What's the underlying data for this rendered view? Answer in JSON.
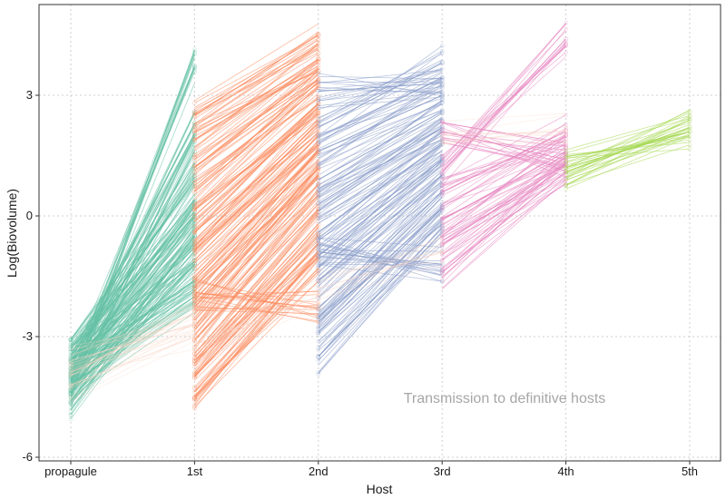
{
  "chart_data": {
    "type": "line",
    "xlabel": "Host",
    "ylabel": "Log(Biovolume)",
    "categories": [
      "propagule",
      "1st",
      "2nd",
      "3rd",
      "4th",
      "5th"
    ],
    "y_ticks": [
      -6,
      -3,
      0,
      3
    ],
    "ylim": [
      -6,
      4.9
    ],
    "grid": true,
    "annotation": "Transmission to definitive hosts",
    "colors": {
      "to_1st_host": "#66c2a5",
      "to_2nd_host": "#fc8d62",
      "to_3rd_host": "#8da0cb",
      "to_4th_host": "#e78ac3",
      "to_5th_host": "#a6d854",
      "definitive_transition": "#f9d3c4",
      "background": "#ffffff",
      "grid": "#cfcfcf"
    },
    "series": [
      {
        "color_key": "to_1st_host",
        "segments": [
          [
            [
              0,
              -4.1
            ],
            [
              1,
              3.7
            ]
          ],
          [
            [
              0,
              -3.8
            ],
            [
              1,
              2.3
            ]
          ],
          [
            [
              0,
              -4.3
            ],
            [
              1,
              1.6
            ]
          ],
          [
            [
              0,
              -3.5
            ],
            [
              1,
              0.9
            ]
          ],
          [
            [
              0,
              -3.9
            ],
            [
              1,
              0.4
            ]
          ],
          [
            [
              0,
              -4.0
            ],
            [
              1,
              -0.2
            ]
          ],
          [
            [
              0,
              -3.6
            ],
            [
              1,
              -0.8
            ]
          ],
          [
            [
              0,
              -4.4
            ],
            [
              1,
              -1.2
            ]
          ],
          [
            [
              0,
              -3.7
            ],
            [
              1,
              -1.6
            ]
          ],
          [
            [
              0,
              -4.2
            ],
            [
              1,
              -2.0
            ]
          ],
          [
            [
              0,
              -3.3
            ],
            [
              1,
              0.1
            ]
          ],
          [
            [
              0,
              -4.6
            ],
            [
              1,
              -0.5
            ]
          ]
        ]
      },
      {
        "color_key": "to_2nd_host",
        "segments": [
          [
            [
              1,
              2.5
            ],
            [
              2,
              4.5
            ]
          ],
          [
            [
              1,
              1.9
            ],
            [
              2,
              3.9
            ]
          ],
          [
            [
              1,
              1.2
            ],
            [
              2,
              3.6
            ]
          ],
          [
            [
              1,
              0.6
            ],
            [
              2,
              3.2
            ]
          ],
          [
            [
              1,
              0.0
            ],
            [
              2,
              2.8
            ]
          ],
          [
            [
              1,
              -0.6
            ],
            [
              2,
              2.4
            ]
          ],
          [
            [
              1,
              -1.1
            ],
            [
              2,
              2.0
            ]
          ],
          [
            [
              1,
              -1.6
            ],
            [
              2,
              1.6
            ]
          ],
          [
            [
              1,
              -2.1
            ],
            [
              2,
              1.2
            ]
          ],
          [
            [
              1,
              -2.6
            ],
            [
              2,
              0.8
            ]
          ],
          [
            [
              1,
              -3.1
            ],
            [
              2,
              0.3
            ]
          ],
          [
            [
              1,
              -3.6
            ],
            [
              2,
              -0.2
            ]
          ],
          [
            [
              1,
              -4.0
            ],
            [
              2,
              -0.7
            ]
          ],
          [
            [
              1,
              -4.5
            ],
            [
              2,
              -1.3
            ]
          ],
          [
            [
              1,
              -1.9
            ],
            [
              2,
              -2.3
            ]
          ]
        ]
      },
      {
        "color_key": "to_3rd_host",
        "segments": [
          [
            [
              2,
              3.1
            ],
            [
              3,
              3.3
            ]
          ],
          [
            [
              2,
              2.2
            ],
            [
              3,
              3.8
            ]
          ],
          [
            [
              2,
              1.6
            ],
            [
              3,
              3.0
            ]
          ],
          [
            [
              2,
              0.9
            ],
            [
              3,
              2.6
            ]
          ],
          [
            [
              2,
              0.3
            ],
            [
              3,
              2.2
            ]
          ],
          [
            [
              2,
              -0.4
            ],
            [
              3,
              1.8
            ]
          ],
          [
            [
              2,
              -1.0
            ],
            [
              3,
              1.4
            ]
          ],
          [
            [
              2,
              -1.6
            ],
            [
              3,
              1.0
            ]
          ],
          [
            [
              2,
              -2.3
            ],
            [
              3,
              0.6
            ]
          ],
          [
            [
              2,
              -2.9
            ],
            [
              3,
              0.2
            ]
          ],
          [
            [
              2,
              -3.5
            ],
            [
              3,
              -0.3
            ]
          ],
          [
            [
              2,
              -0.9
            ],
            [
              3,
              -1.2
            ]
          ]
        ]
      },
      {
        "color_key": "to_4th_host",
        "segments": [
          [
            [
              3,
              1.1
            ],
            [
              4,
              4.4
            ]
          ],
          [
            [
              3,
              2.1
            ],
            [
              4,
              1.4
            ]
          ],
          [
            [
              3,
              0.6
            ],
            [
              4,
              2.1
            ]
          ],
          [
            [
              3,
              -0.1
            ],
            [
              4,
              1.6
            ]
          ],
          [
            [
              3,
              -0.7
            ],
            [
              4,
              1.3
            ]
          ],
          [
            [
              3,
              -1.4
            ],
            [
              4,
              1.1
            ]
          ]
        ]
      },
      {
        "color_key": "to_5th_host",
        "segments": [
          [
            [
              4,
              1.1
            ],
            [
              5,
              2.2
            ]
          ],
          [
            [
              4,
              1.2
            ],
            [
              5,
              2.1
            ]
          ]
        ]
      },
      {
        "color_key": "definitive_transition",
        "segments": [
          [
            [
              0,
              -3.9
            ],
            [
              1,
              -2.4
            ]
          ],
          [
            [
              0,
              -4.2
            ],
            [
              1,
              -3.0
            ]
          ],
          [
            [
              0,
              -3.6
            ],
            [
              1,
              -2.7
            ]
          ],
          [
            [
              1,
              -3.2
            ],
            [
              2,
              -2.0
            ]
          ],
          [
            [
              2,
              -1.8
            ],
            [
              3,
              -0.9
            ]
          ],
          [
            [
              3,
              2.0
            ],
            [
              4,
              2.1
            ]
          ]
        ]
      }
    ]
  }
}
